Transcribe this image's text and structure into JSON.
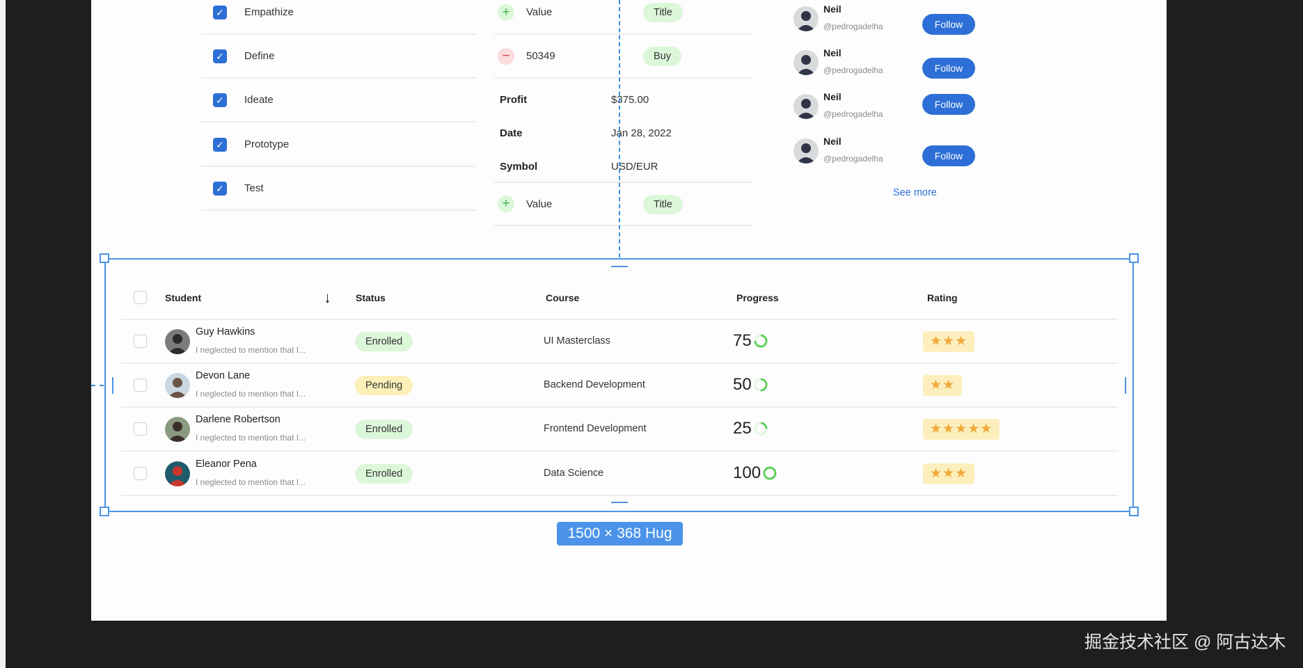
{
  "checklist": [
    {
      "label": "Empathize",
      "checked": true
    },
    {
      "label": "Define",
      "checked": true
    },
    {
      "label": "Ideate",
      "checked": true
    },
    {
      "label": "Prototype",
      "checked": true
    },
    {
      "label": "Test",
      "checked": true
    }
  ],
  "trade": {
    "row1": {
      "icon": "plus-icon",
      "value": "Value",
      "pill": "Title"
    },
    "row2": {
      "icon": "minus-icon",
      "value": "50349",
      "pill": "Buy"
    },
    "details": [
      {
        "label": "Profit",
        "value": "$375.00"
      },
      {
        "label": "Date",
        "value": "Jan 28, 2022"
      },
      {
        "label": "Symbol",
        "value": "USD/EUR"
      }
    ],
    "row3": {
      "icon": "plus-icon",
      "value": "Value",
      "pill": "Title"
    }
  },
  "follow": {
    "users": [
      {
        "name": "Neil",
        "handle": "@pedrogadelha",
        "button": "Follow"
      },
      {
        "name": "Neil",
        "handle": "@pedrogadelha",
        "button": "Follow"
      },
      {
        "name": "Neil",
        "handle": "@pedrogadelha",
        "button": "Follow"
      },
      {
        "name": "Neil",
        "handle": "@pedrogadelha",
        "button": "Follow"
      }
    ],
    "see_more": "See more"
  },
  "table": {
    "headers": {
      "student": "Student",
      "status": "Status",
      "course": "Course",
      "progress": "Progress",
      "rating": "Rating"
    },
    "sort_icon": "arrow-down-icon",
    "rows": [
      {
        "name": "Guy Hawkins",
        "note": "I neglected to mention that I...",
        "status": "Enrolled",
        "status_type": "enrolled",
        "course": "UI Masterclass",
        "progress": 75,
        "rating": 3
      },
      {
        "name": "Devon Lane",
        "note": "I neglected to mention that I...",
        "status": "Pending",
        "status_type": "pending",
        "course": "Backend Development",
        "progress": 50,
        "rating": 2
      },
      {
        "name": "Darlene Robertson",
        "note": "I neglected to mention that I...",
        "status": "Enrolled",
        "status_type": "enrolled",
        "course": "Frontend Development",
        "progress": 25,
        "rating": 5
      },
      {
        "name": "Eleanor Pena",
        "note": "I neglected to mention that I...",
        "status": "Enrolled",
        "status_type": "enrolled",
        "course": "Data Science",
        "progress": 100,
        "rating": 3
      }
    ]
  },
  "selection": {
    "size_label": "1500 × 368 Hug"
  },
  "watermark": "掘金技术社区 @ 阿古达木",
  "colors": {
    "accent": "#2d6fd6",
    "selection": "#4b93e8",
    "enrolled_bg": "#dcf6d9",
    "pending_bg": "#fcf0b8",
    "progress": "#5fd15a",
    "star": "#f0a93a"
  }
}
